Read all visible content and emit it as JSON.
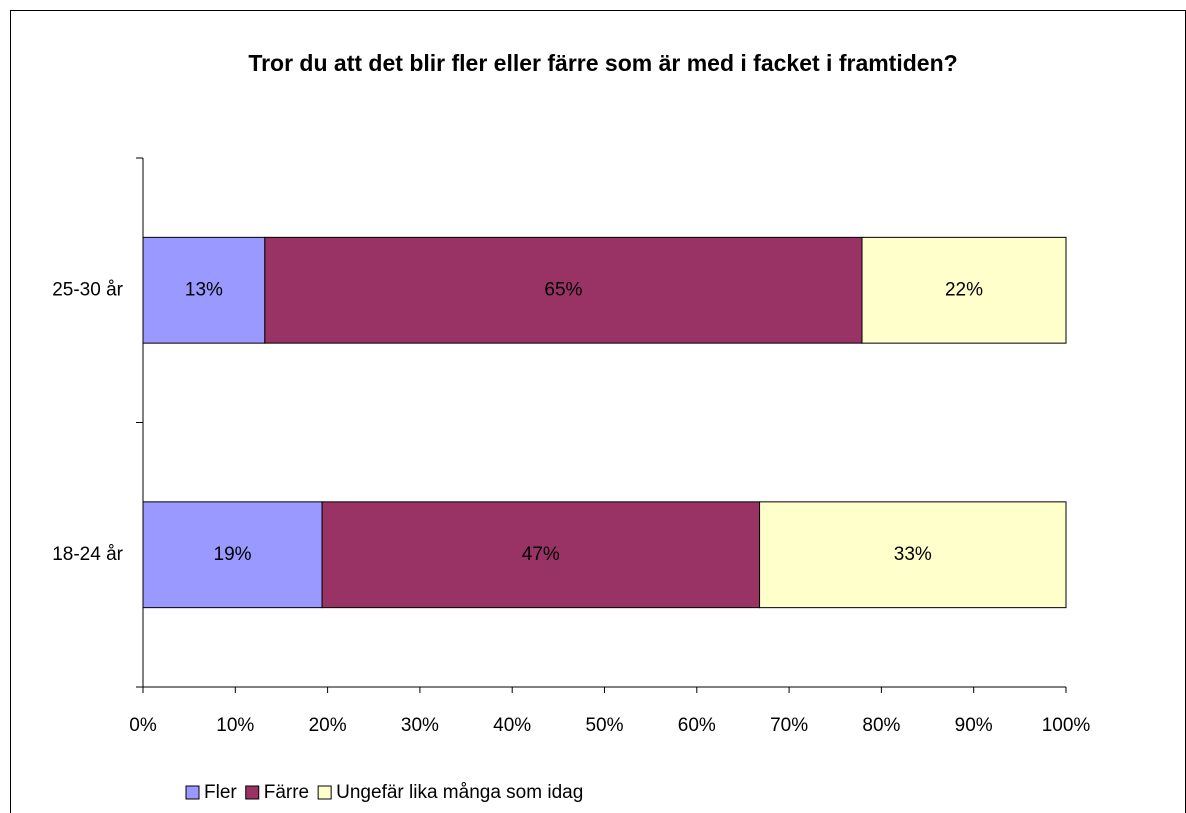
{
  "chart_data": {
    "type": "stacked_barh",
    "title": "Tror du att det blir fler eller färre som är med i facket i framtiden?",
    "categories": [
      "18-24 år",
      "25-30 år"
    ],
    "series": [
      {
        "name": "Fler",
        "color": "#9999ff",
        "values": [
          19.4,
          13.2
        ],
        "value_labels": [
          "19%",
          "13%"
        ]
      },
      {
        "name": "Färre",
        "color": "#993366",
        "values": [
          47.4,
          64.7
        ],
        "value_labels": [
          "47%",
          "65%"
        ]
      },
      {
        "name": "Ungefär lika många som idag",
        "color": "#ffffcc",
        "values": [
          33.2,
          22.1
        ],
        "value_labels": [
          "33%",
          "22%"
        ]
      }
    ],
    "xlim": [
      0,
      100
    ],
    "xticks": [
      {
        "value": 0,
        "label": "0%"
      },
      {
        "value": 10,
        "label": "10%"
      },
      {
        "value": 20,
        "label": "20%"
      },
      {
        "value": 30,
        "label": "30%"
      },
      {
        "value": 40,
        "label": "40%"
      },
      {
        "value": 50,
        "label": "50%"
      },
      {
        "value": 60,
        "label": "60%"
      },
      {
        "value": 70,
        "label": "70%"
      },
      {
        "value": 80,
        "label": "80%"
      },
      {
        "value": 90,
        "label": "90%"
      },
      {
        "value": 100,
        "label": "100%"
      }
    ],
    "legend": "bottom"
  }
}
